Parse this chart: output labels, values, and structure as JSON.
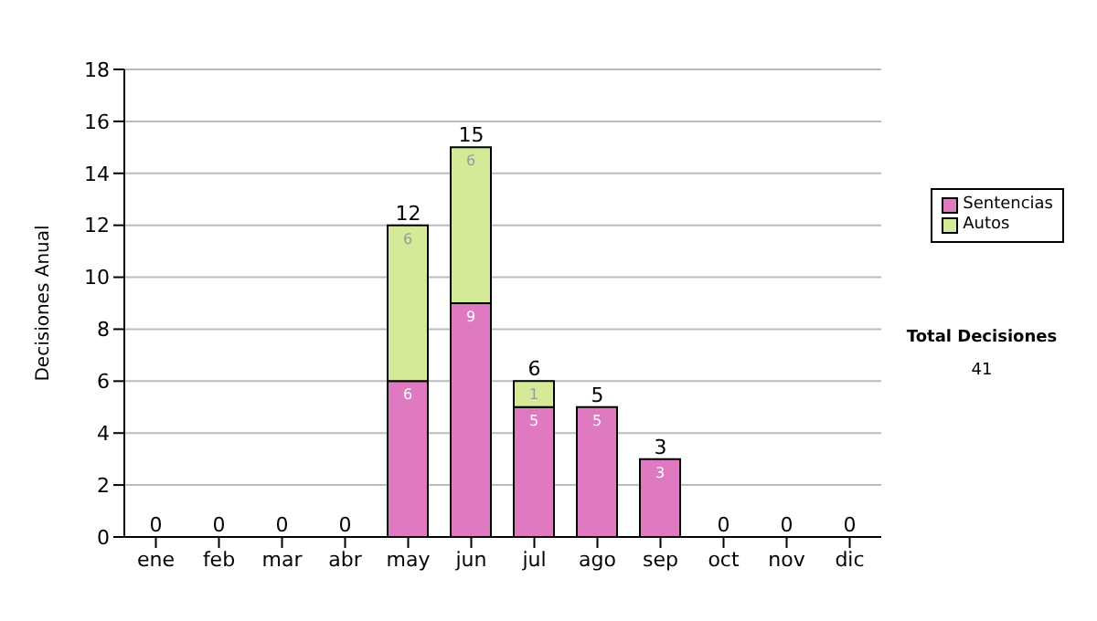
{
  "chart_data": {
    "type": "bar",
    "stacked": true,
    "ylabel": "Decisiones Anual",
    "categories": [
      "ene",
      "feb",
      "mar",
      "abr",
      "may",
      "jun",
      "jul",
      "ago",
      "sep",
      "oct",
      "nov",
      "dic"
    ],
    "series": [
      {
        "name": "Sentencias",
        "color": "#e07ac0",
        "values": [
          0,
          0,
          0,
          0,
          6,
          9,
          5,
          5,
          3,
          0,
          0,
          0
        ],
        "value_labels": [
          null,
          null,
          null,
          null,
          "6",
          "9",
          "5",
          "5",
          "3",
          null,
          null,
          null
        ]
      },
      {
        "name": "Autos",
        "color": "#d4ea98",
        "values": [
          0,
          0,
          0,
          0,
          6,
          6,
          1,
          0,
          0,
          0,
          0,
          0
        ],
        "value_labels": [
          null,
          null,
          null,
          null,
          "6",
          "6",
          "1",
          null,
          null,
          null,
          null,
          null
        ]
      }
    ],
    "totals": [
      "0",
      "0",
      "0",
      "0",
      "12",
      "15",
      "6",
      "5",
      "3",
      "0",
      "0",
      "0"
    ],
    "ylim": [
      0,
      18
    ],
    "yticks": [
      0,
      2,
      4,
      6,
      8,
      10,
      12,
      14,
      16,
      18
    ],
    "grid": "y",
    "legend": "right",
    "annotations": [
      "Total Decisiones",
      "41"
    ]
  }
}
